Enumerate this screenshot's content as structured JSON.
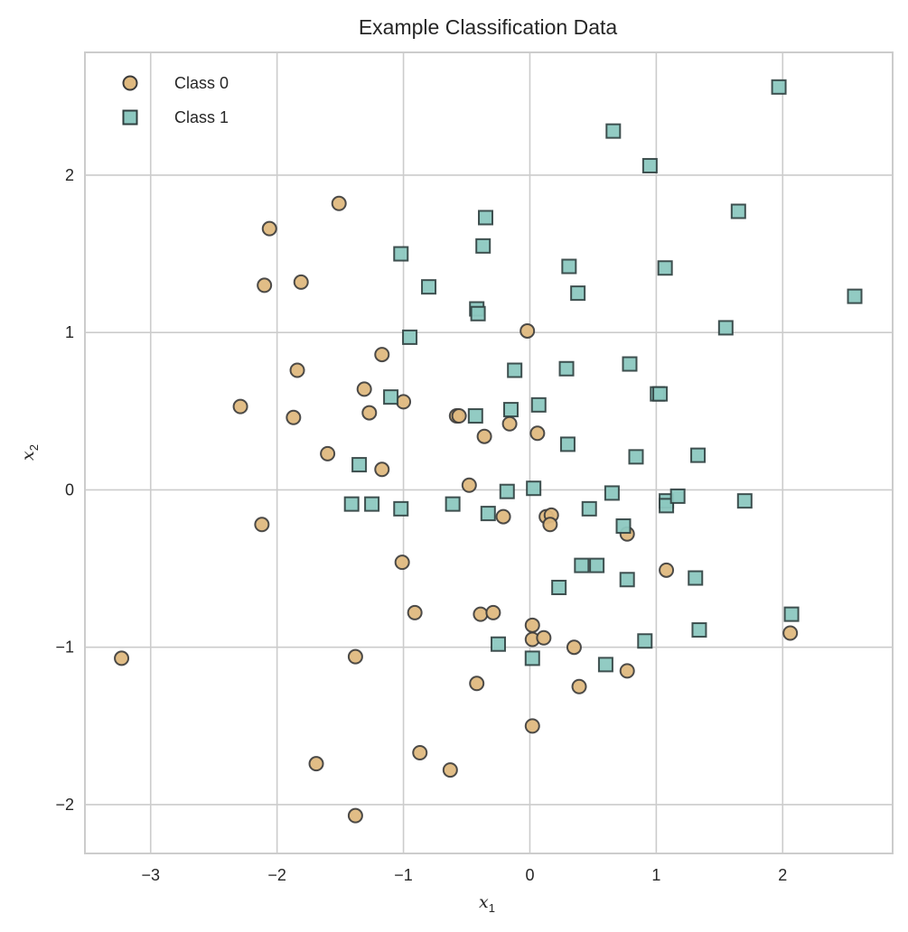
{
  "chart_data": {
    "type": "scatter",
    "title": "Example Classification Data",
    "xlabel": "x",
    "xlabel_sub": "1",
    "ylabel": "x",
    "ylabel_sub": "2",
    "xlim": [
      -3.52,
      2.87
    ],
    "ylim": [
      -2.31,
      2.78
    ],
    "xticks": [
      -3,
      -2,
      -1,
      0,
      1,
      2
    ],
    "yticks": [
      -2,
      -1,
      0,
      1,
      2
    ],
    "xtick_labels": [
      "−3",
      "−2",
      "−1",
      "0",
      "1",
      "2"
    ],
    "ytick_labels": [
      "−2",
      "−1",
      "0",
      "1",
      "2"
    ],
    "grid": true,
    "legend_position": "top-left",
    "series": [
      {
        "name": "Class 0",
        "marker": "circle",
        "fill": "#dfb97f",
        "edge": "#3a3a3a",
        "points": [
          [
            -1.51,
            1.82
          ],
          [
            -2.06,
            1.66
          ],
          [
            -2.1,
            1.3
          ],
          [
            -1.81,
            1.32
          ],
          [
            -1.17,
            0.86
          ],
          [
            -1.84,
            0.76
          ],
          [
            -1.31,
            0.64
          ],
          [
            -1.0,
            0.56
          ],
          [
            -2.29,
            0.53
          ],
          [
            -1.27,
            0.49
          ],
          [
            -1.87,
            0.46
          ],
          [
            -1.6,
            0.23
          ],
          [
            -1.17,
            0.13
          ],
          [
            -2.12,
            -0.22
          ],
          [
            -0.02,
            1.01
          ],
          [
            -0.58,
            0.47
          ],
          [
            -0.56,
            0.47
          ],
          [
            -0.16,
            0.42
          ],
          [
            -0.36,
            0.34
          ],
          [
            0.06,
            0.36
          ],
          [
            -0.48,
            0.03
          ],
          [
            -0.21,
            -0.17
          ],
          [
            0.13,
            -0.17
          ],
          [
            0.17,
            -0.16
          ],
          [
            0.16,
            -0.22
          ],
          [
            0.77,
            -0.28
          ],
          [
            1.08,
            -0.51
          ],
          [
            2.06,
            -0.91
          ],
          [
            -1.01,
            -0.46
          ],
          [
            -0.91,
            -0.78
          ],
          [
            -0.39,
            -0.79
          ],
          [
            -0.29,
            -0.78
          ],
          [
            0.02,
            -0.86
          ],
          [
            0.02,
            -0.95
          ],
          [
            0.11,
            -0.94
          ],
          [
            0.35,
            -1.0
          ],
          [
            0.77,
            -1.15
          ],
          [
            0.39,
            -1.25
          ],
          [
            -0.42,
            -1.23
          ],
          [
            0.02,
            -1.5
          ],
          [
            -3.23,
            -1.07
          ],
          [
            -1.38,
            -1.06
          ],
          [
            -1.69,
            -1.74
          ],
          [
            -0.87,
            -1.67
          ],
          [
            -0.63,
            -1.78
          ],
          [
            -1.38,
            -2.07
          ]
        ]
      },
      {
        "name": "Class 1",
        "marker": "square",
        "fill": "#8cc8c0",
        "edge": "#2f3f3f",
        "points": [
          [
            1.97,
            2.56
          ],
          [
            0.66,
            2.28
          ],
          [
            0.95,
            2.06
          ],
          [
            1.65,
            1.77
          ],
          [
            -0.35,
            1.73
          ],
          [
            -0.37,
            1.55
          ],
          [
            -1.02,
            1.5
          ],
          [
            0.31,
            1.42
          ],
          [
            1.07,
            1.41
          ],
          [
            -0.8,
            1.29
          ],
          [
            0.38,
            1.25
          ],
          [
            2.57,
            1.23
          ],
          [
            -0.42,
            1.15
          ],
          [
            -0.41,
            1.12
          ],
          [
            1.55,
            1.03
          ],
          [
            -0.95,
            0.97
          ],
          [
            -0.12,
            0.76
          ],
          [
            0.29,
            0.77
          ],
          [
            0.79,
            0.8
          ],
          [
            1.01,
            0.61
          ],
          [
            1.03,
            0.61
          ],
          [
            -1.1,
            0.59
          ],
          [
            -0.43,
            0.47
          ],
          [
            -0.15,
            0.51
          ],
          [
            0.07,
            0.54
          ],
          [
            0.3,
            0.29
          ],
          [
            0.84,
            0.21
          ],
          [
            1.33,
            0.22
          ],
          [
            -1.35,
            0.16
          ],
          [
            -1.41,
            -0.09
          ],
          [
            -1.25,
            -0.09
          ],
          [
            -1.02,
            -0.12
          ],
          [
            -0.61,
            -0.09
          ],
          [
            -0.33,
            -0.15
          ],
          [
            -0.18,
            -0.01
          ],
          [
            0.03,
            0.01
          ],
          [
            0.47,
            -0.12
          ],
          [
            0.65,
            -0.02
          ],
          [
            0.74,
            -0.23
          ],
          [
            1.08,
            -0.07
          ],
          [
            1.08,
            -0.1
          ],
          [
            1.17,
            -0.04
          ],
          [
            1.7,
            -0.07
          ],
          [
            0.41,
            -0.48
          ],
          [
            0.53,
            -0.48
          ],
          [
            0.23,
            -0.62
          ],
          [
            0.77,
            -0.57
          ],
          [
            1.31,
            -0.56
          ],
          [
            2.07,
            -0.79
          ],
          [
            1.34,
            -0.89
          ],
          [
            0.91,
            -0.96
          ],
          [
            -0.25,
            -0.98
          ],
          [
            0.02,
            -1.07
          ],
          [
            0.6,
            -1.11
          ]
        ]
      }
    ]
  }
}
